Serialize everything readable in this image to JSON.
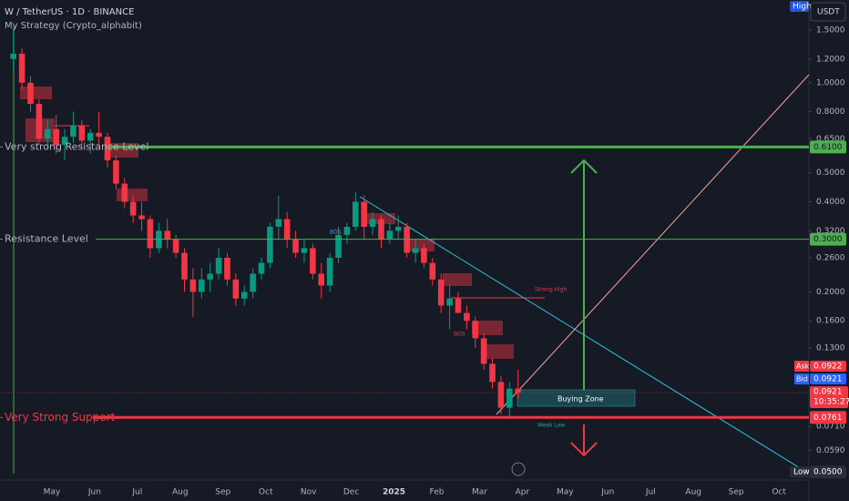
{
  "header": {
    "symbol": "W / TetherUS · 1D · BINANCE",
    "strategy": "My Strategy (Crypto_alphabit)"
  },
  "chart_data": {
    "type": "candlestick",
    "currency": "USDT",
    "log_scale": true,
    "up_color": "#089981",
    "down_color": "#f23645",
    "ylim": [
      0.047,
      1.89
    ],
    "yticks": [
      {
        "value": 1.5,
        "label": "1.5000"
      },
      {
        "value": 1.2,
        "label": "1.2000"
      },
      {
        "value": 1.0,
        "label": "1.0000"
      },
      {
        "value": 0.8,
        "label": "0.8000"
      },
      {
        "value": 0.65,
        "label": "0.6500"
      },
      {
        "value": 0.5,
        "label": "0.5000"
      },
      {
        "value": 0.4,
        "label": "0.4000"
      },
      {
        "value": 0.32,
        "label": "0.3200"
      },
      {
        "value": 0.26,
        "label": "0.2600"
      },
      {
        "value": 0.2,
        "label": "0.2000"
      },
      {
        "value": 0.16,
        "label": "0.1600"
      },
      {
        "value": 0.13,
        "label": "0.1300"
      },
      {
        "value": 0.071,
        "label": "0.0710"
      },
      {
        "value": 0.059,
        "label": "0.0590"
      }
    ],
    "categories": [
      null,
      null,
      null,
      null,
      null,
      "May",
      null,
      null,
      null,
      null,
      "Jun",
      null,
      null,
      null,
      null,
      "Jul",
      null,
      null,
      null,
      null,
      "Aug",
      null,
      null,
      null,
      null,
      "Sep",
      null,
      null,
      null,
      null,
      "Oct",
      null,
      null,
      null,
      null,
      "Nov",
      null,
      null,
      null,
      null,
      "Dec",
      null,
      null,
      null,
      null,
      "2025",
      null,
      null,
      null,
      null,
      "Feb",
      null,
      null,
      null,
      null,
      "Mar",
      null,
      null,
      null,
      null,
      "Apr",
      null,
      null,
      null,
      null,
      "May",
      null,
      null,
      null,
      null,
      "Jun",
      null,
      null,
      null,
      null,
      "Jul",
      null,
      null,
      null,
      null,
      "Aug",
      null,
      null,
      null,
      null,
      "Sep",
      null,
      null,
      null,
      null,
      "Oct",
      null,
      null,
      null,
      null
    ],
    "open": [
      1.2,
      1.25,
      1.0,
      0.85,
      0.65,
      0.7,
      0.62,
      0.66,
      0.72,
      0.64,
      0.68,
      0.66,
      0.55,
      0.46,
      0.4,
      0.36,
      0.35,
      0.28,
      0.32,
      0.3,
      0.27,
      0.22,
      0.2,
      0.22,
      0.23,
      0.26,
      0.22,
      0.19,
      0.2,
      0.23,
      0.25,
      0.33,
      0.35,
      0.3,
      0.27,
      0.28,
      0.23,
      0.21,
      0.26,
      0.31,
      0.33,
      0.4,
      0.33,
      0.35,
      0.3,
      0.32,
      0.33,
      0.27,
      0.28,
      0.25,
      0.22,
      0.18,
      0.19,
      0.17,
      0.16,
      0.14,
      0.115,
      0.1,
      0.082,
      0.095,
      null,
      null,
      null,
      null,
      null,
      null,
      null,
      null,
      null,
      null,
      null,
      null,
      null,
      null,
      null,
      null,
      null,
      null,
      null,
      null,
      null,
      null,
      null,
      null,
      null,
      null,
      null,
      null,
      null,
      null,
      null,
      null,
      null,
      null,
      null
    ],
    "high": [
      1.5,
      1.3,
      1.05,
      0.88,
      0.75,
      0.78,
      0.7,
      0.8,
      0.75,
      0.7,
      0.8,
      0.68,
      0.57,
      0.48,
      0.42,
      0.4,
      0.36,
      0.34,
      0.35,
      0.31,
      0.28,
      0.24,
      0.24,
      0.25,
      0.28,
      0.27,
      0.23,
      0.21,
      0.24,
      0.26,
      0.34,
      0.42,
      0.37,
      0.32,
      0.3,
      0.29,
      0.25,
      0.27,
      0.33,
      0.34,
      0.43,
      0.42,
      0.37,
      0.36,
      0.34,
      0.36,
      0.34,
      0.3,
      0.29,
      0.26,
      0.23,
      0.21,
      0.2,
      0.18,
      0.165,
      0.145,
      0.12,
      0.105,
      0.1,
      0.11,
      null,
      null,
      null,
      null,
      null,
      null,
      null,
      null,
      null,
      null,
      null,
      null,
      null,
      null,
      null,
      null,
      null,
      null,
      null,
      null,
      null,
      null,
      null,
      null,
      null,
      null,
      null,
      null,
      null,
      null,
      null,
      null,
      null,
      null,
      null
    ],
    "low": [
      1.1,
      0.95,
      0.8,
      0.62,
      0.6,
      0.58,
      0.55,
      0.63,
      0.6,
      0.58,
      0.62,
      0.52,
      0.44,
      0.38,
      0.34,
      0.32,
      0.26,
      0.27,
      0.28,
      0.26,
      0.2,
      0.165,
      0.19,
      0.2,
      0.22,
      0.21,
      0.18,
      0.18,
      0.19,
      0.22,
      0.24,
      0.3,
      0.28,
      0.26,
      0.25,
      0.22,
      0.19,
      0.2,
      0.25,
      0.29,
      0.32,
      0.3,
      0.31,
      0.28,
      0.29,
      0.3,
      0.26,
      0.25,
      0.24,
      0.21,
      0.17,
      0.15,
      0.17,
      0.15,
      0.13,
      0.11,
      0.095,
      0.078,
      0.076,
      0.088,
      null,
      null,
      null,
      null,
      null,
      null,
      null,
      null,
      null,
      null,
      null,
      null,
      null,
      null,
      null,
      null,
      null,
      null,
      null,
      null,
      null,
      null,
      null,
      null,
      null,
      null,
      null,
      null,
      null,
      null,
      null,
      null,
      null,
      null,
      null
    ],
    "close": [
      1.25,
      1.0,
      0.85,
      0.65,
      0.7,
      0.62,
      0.66,
      0.72,
      0.64,
      0.68,
      0.66,
      0.55,
      0.46,
      0.4,
      0.36,
      0.35,
      0.28,
      0.32,
      0.3,
      0.27,
      0.22,
      0.2,
      0.22,
      0.23,
      0.26,
      0.22,
      0.19,
      0.2,
      0.23,
      0.25,
      0.33,
      0.35,
      0.3,
      0.27,
      0.28,
      0.23,
      0.21,
      0.26,
      0.31,
      0.33,
      0.4,
      0.33,
      0.35,
      0.3,
      0.32,
      0.33,
      0.27,
      0.28,
      0.25,
      0.22,
      0.18,
      0.19,
      0.17,
      0.16,
      0.14,
      0.115,
      0.1,
      0.082,
      0.095,
      0.0921,
      null,
      null,
      null,
      null,
      null,
      null,
      null,
      null,
      null,
      null,
      null,
      null,
      null,
      null,
      null,
      null,
      null,
      null,
      null,
      null,
      null,
      null,
      null,
      null,
      null,
      null,
      null,
      null,
      null,
      null,
      null,
      null,
      null,
      null,
      null
    ],
    "levels": [
      {
        "label": "Very strong Resistance Level",
        "value": 0.61,
        "value_label": "0.6100",
        "color": "#4caf50"
      },
      {
        "label": "Resistance Level",
        "value": 0.3,
        "value_label": "0.3000",
        "color": "#4caf50"
      },
      {
        "label": "Very Strong Support",
        "value": 0.0761,
        "value_label": "0.0761",
        "color": "#f23645"
      }
    ],
    "annotations": {
      "bos_1": "BOS",
      "bos_2": "BOS",
      "strong_high": "Strong High",
      "weak_low": "Weak Low",
      "zone": "Buying Zone"
    },
    "range_tags": {
      "high": "High",
      "low": "Low",
      "low_value": {
        "value": 0.05,
        "label": "0.0500"
      }
    },
    "quote": {
      "ask": "Ask",
      "ask_value": {
        "value": 0.0922,
        "label": "0.0922"
      },
      "bid": "Bid",
      "bid_value": {
        "value": 0.0921,
        "label": "0.0921"
      },
      "last_value": {
        "value": 0.0921,
        "label": "0.0921"
      },
      "countdown": "10:35:27"
    }
  }
}
